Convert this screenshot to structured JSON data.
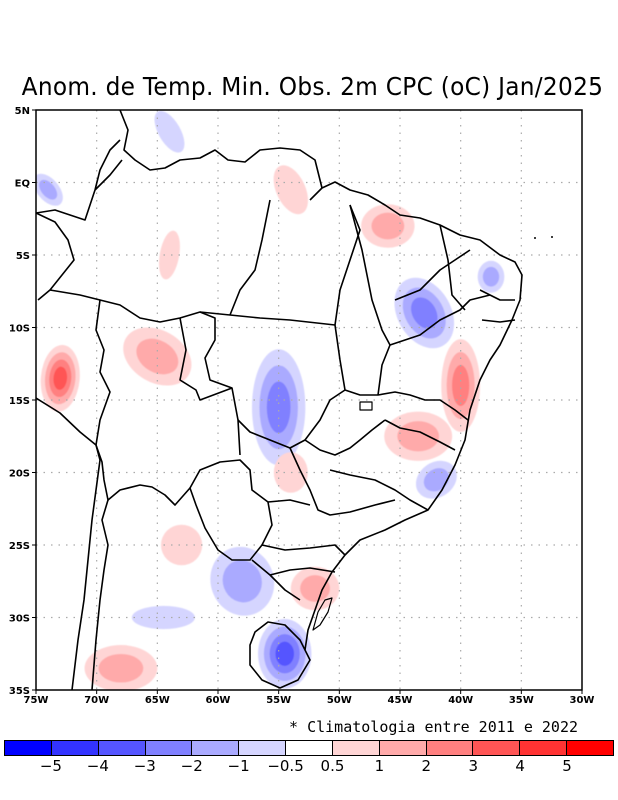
{
  "title": "Anom. de Temp. Min. Obs. 2m CPC (oC) Jan/2025",
  "footnote": "* Climatologia entre 2011 e 2022",
  "units": "oC",
  "variable": "Minimum temperature anomaly (2m)",
  "source": "CPC",
  "period": "Jan/2025",
  "axes": {
    "lon_range": [
      -75,
      -30
    ],
    "lat_range": [
      -35,
      5
    ],
    "x_ticks": [
      {
        "value": -75,
        "label": "75W"
      },
      {
        "value": -70,
        "label": "70W"
      },
      {
        "value": -65,
        "label": "65W"
      },
      {
        "value": -60,
        "label": "60W"
      },
      {
        "value": -55,
        "label": "55W"
      },
      {
        "value": -50,
        "label": "50W"
      },
      {
        "value": -45,
        "label": "45W"
      },
      {
        "value": -40,
        "label": "40W"
      },
      {
        "value": -35,
        "label": "35W"
      },
      {
        "value": -30,
        "label": "30W"
      }
    ],
    "y_ticks": [
      {
        "value": 5,
        "label": "5N"
      },
      {
        "value": 0,
        "label": "EQ"
      },
      {
        "value": -5,
        "label": "5S"
      },
      {
        "value": -10,
        "label": "10S"
      },
      {
        "value": -15,
        "label": "15S"
      },
      {
        "value": -20,
        "label": "20S"
      },
      {
        "value": -25,
        "label": "25S"
      },
      {
        "value": -30,
        "label": "30S"
      },
      {
        "value": -35,
        "label": "35S"
      }
    ],
    "grid": "dotted"
  },
  "colorbar": {
    "colors": [
      "#0000ff",
      "#3333ff",
      "#5555ff",
      "#8080ff",
      "#aaaaff",
      "#d5d5ff",
      "#ffffff",
      "#ffd5d5",
      "#ffaaaa",
      "#ff8080",
      "#ff5555",
      "#ff3333",
      "#ff0000"
    ],
    "labels": [
      "-5",
      "-4",
      "-3",
      "-2",
      "-1",
      "-0.5",
      "0.5",
      "1",
      "2",
      "3",
      "4",
      "5"
    ]
  },
  "anomaly_regions": [
    {
      "name": "Amazon-NW cold patch",
      "lon": -74,
      "lat": -0.5,
      "level": -1
    },
    {
      "name": "Roraima-N Amazonas cold",
      "lon": -64,
      "lat": 3.5,
      "level": -0.5
    },
    {
      "name": "Amapa-Para warm",
      "lon": -54,
      "lat": -0.5,
      "level": 0.5
    },
    {
      "name": "Maranhao-Para coast warm",
      "lon": -46,
      "lat": -3,
      "level": 1
    },
    {
      "name": "Central Amazonas warm",
      "lon": -64,
      "lat": -5,
      "level": 0.5
    },
    {
      "name": "Peru-Acre warm",
      "lon": -73,
      "lat": -13.5,
      "level": 3
    },
    {
      "name": "Rondonia-Bolivia warm",
      "lon": -65,
      "lat": -12,
      "level": 1
    },
    {
      "name": "Mato Grosso-Goias cold",
      "lon": -55,
      "lat": -15.5,
      "level": -2
    },
    {
      "name": "Tocantins-Piaui cold",
      "lon": -43,
      "lat": -9,
      "level": -2
    },
    {
      "name": "Rio Grande do Norte cold",
      "lon": -37.5,
      "lat": -6.5,
      "level": -1
    },
    {
      "name": "Bahia coast warm",
      "lon": -40,
      "lat": -14,
      "level": 2
    },
    {
      "name": "Minas Gerais warm",
      "lon": -43.5,
      "lat": -17.5,
      "level": 1
    },
    {
      "name": "Espirito Santo-Minas cold",
      "lon": -42,
      "lat": -20.5,
      "level": -1
    },
    {
      "name": "Mato Grosso do Sul warm",
      "lon": -54,
      "lat": -20,
      "level": 0.5
    },
    {
      "name": "Paraguay-Argentina cold",
      "lon": -58,
      "lat": -27.5,
      "level": -1
    },
    {
      "name": "NE Argentina warm",
      "lon": -63,
      "lat": -25,
      "level": 0.5
    },
    {
      "name": "Santa Catarina-RS warm",
      "lon": -52,
      "lat": -28,
      "level": 1
    },
    {
      "name": "Uruguay-RS cold",
      "lon": -54.5,
      "lat": -32.5,
      "level": -3
    },
    {
      "name": "Central Argentina cold",
      "lon": -64.5,
      "lat": -30,
      "level": -0.5
    },
    {
      "name": "Chile-Argentina warm",
      "lon": -68,
      "lat": -33.5,
      "level": 1
    }
  ]
}
